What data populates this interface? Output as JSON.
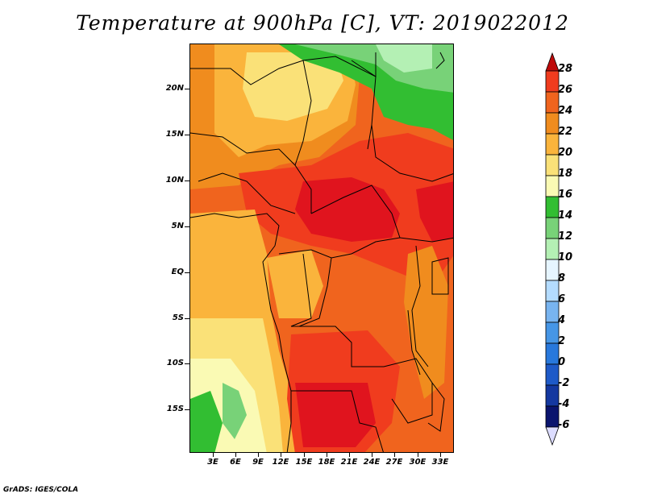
{
  "title": "Temperature at 900hPa [C], VT: 2019022012",
  "footer": "GrADS: IGES/COLA",
  "lat_labels": [
    "20N",
    "15N",
    "10N",
    "5N",
    "EQ",
    "5S",
    "10S",
    "15S"
  ],
  "lon_labels": [
    "3E",
    "6E",
    "9E",
    "12E",
    "15E",
    "18E",
    "21E",
    "24E",
    "27E",
    "30E",
    "33E"
  ],
  "colorbar": {
    "levels": [
      "28",
      "26",
      "24",
      "22",
      "20",
      "18",
      "16",
      "14",
      "12",
      "10",
      "8",
      "6",
      "4",
      "2",
      "0",
      "-2",
      "-4",
      "-6"
    ],
    "colors": [
      "#e0141e",
      "#f03c1e",
      "#f0641e",
      "#f08c1e",
      "#fab43c",
      "#fae178",
      "#fafab4",
      "#32be32",
      "#78d278",
      "#b4f0b4",
      "#e6f5ff",
      "#b4dcff",
      "#78b4f0",
      "#4696e6",
      "#2878dc",
      "#1e5ac8",
      "#1438a0",
      "#0a146e"
    ],
    "under_color": "#dcdcff",
    "over_color": "#be0a0a"
  },
  "map_colors": {
    "c28": "#e0141e",
    "c26": "#f03c1e",
    "c24": "#f0641e",
    "c22": "#f08c1e",
    "c20": "#fab43c",
    "c18": "#fae178",
    "c16": "#fafab4",
    "c14": "#32be32",
    "c12": "#78d278",
    "c10": "#b4f0b4"
  }
}
